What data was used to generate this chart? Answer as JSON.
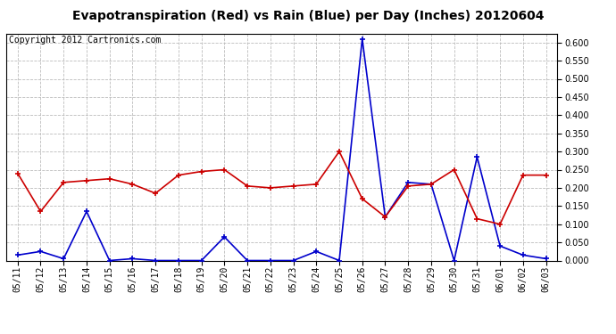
{
  "title": "Evapotranspiration (Red) vs Rain (Blue) per Day (Inches) 20120604",
  "copyright": "Copyright 2012 Cartronics.com",
  "dates": [
    "05/11",
    "05/12",
    "05/13",
    "05/14",
    "05/15",
    "05/16",
    "05/17",
    "05/18",
    "05/19",
    "05/20",
    "05/21",
    "05/22",
    "05/23",
    "05/24",
    "05/25",
    "05/26",
    "05/27",
    "05/28",
    "05/29",
    "05/30",
    "05/31",
    "06/01",
    "06/02",
    "06/03"
  ],
  "red_et": [
    0.24,
    0.135,
    0.215,
    0.22,
    0.225,
    0.21,
    0.185,
    0.235,
    0.245,
    0.25,
    0.205,
    0.2,
    0.205,
    0.21,
    0.3,
    0.17,
    0.12,
    0.205,
    0.21,
    0.25,
    0.115,
    0.1,
    0.235,
    0.235
  ],
  "blue_rain": [
    0.015,
    0.025,
    0.005,
    0.135,
    0.0,
    0.005,
    0.0,
    0.0,
    0.0,
    0.065,
    0.0,
    0.0,
    0.0,
    0.025,
    0.0,
    0.61,
    0.12,
    0.215,
    0.21,
    0.0,
    0.285,
    0.04,
    0.015,
    0.005
  ],
  "ylim": [
    0.0,
    0.625
  ],
  "yticks": [
    0.0,
    0.05,
    0.1,
    0.15,
    0.2,
    0.25,
    0.3,
    0.35,
    0.4,
    0.45,
    0.5,
    0.55,
    0.6
  ],
  "red_color": "#cc0000",
  "blue_color": "#0000cc",
  "bg_color": "#ffffff",
  "grid_color": "#bbbbbb",
  "title_fontsize": 10,
  "copyright_fontsize": 7,
  "tick_fontsize": 7,
  "ytick_fontsize": 7
}
